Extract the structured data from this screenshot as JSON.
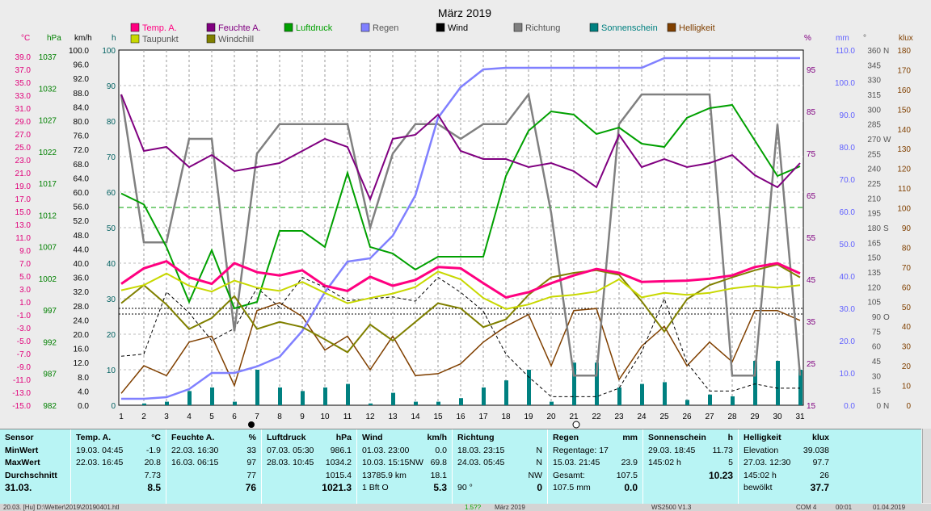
{
  "title": "März 2019",
  "colors": {
    "temp": "#ff0080",
    "feuchte": "#800080",
    "luftdruck": "#00a000",
    "regen": "#8080ff",
    "wind": "#000000",
    "richtung": "#808080",
    "sonnenschein": "#008080",
    "helligkeit": "#804000",
    "taupunkt": "#c8d800",
    "windchill": "#808000"
  },
  "legend": [
    {
      "name": "Temp. A.",
      "color": "#ff0080"
    },
    {
      "name": "Feuchte A.",
      "color": "#800080"
    },
    {
      "name": "Luftdruck",
      "color": "#00a000"
    },
    {
      "name": "Regen",
      "color": "#8080ff"
    },
    {
      "name": "Wind",
      "color": "#000000"
    },
    {
      "name": "Richtung",
      "color": "#808080"
    },
    {
      "name": "Sonnenschein",
      "color": "#008080"
    },
    {
      "name": "Helligkeit",
      "color": "#804000"
    },
    {
      "name": "Taupunkt",
      "color": "#c8d800"
    },
    {
      "name": "Windchill",
      "color": "#808000"
    }
  ],
  "axes": {
    "c": {
      "unit": "°C",
      "ticks": [
        "39.0",
        "37.0",
        "35.0",
        "33.0",
        "31.0",
        "29.0",
        "27.0",
        "25.0",
        "23.0",
        "21.0",
        "19.0",
        "17.0",
        "15.0",
        "13.0",
        "11.0",
        "9.0",
        "7.0",
        "5.0",
        "3.0",
        "1.0",
        "-1.0",
        "-3.0",
        "-5.0",
        "-7.0",
        "-9.0",
        "-11.0",
        "-13.0",
        "-15.0"
      ]
    },
    "hpa": {
      "unit": "hPa",
      "ticks": [
        "1037",
        "1032",
        "1027",
        "1022",
        "1017",
        "1012",
        "1007",
        "1002",
        "997",
        "992",
        "987",
        "982"
      ]
    },
    "kmh": {
      "unit": "km/h",
      "ticks": [
        "100.0",
        "96.0",
        "92.0",
        "88.0",
        "84.0",
        "80.0",
        "76.0",
        "72.0",
        "68.0",
        "64.0",
        "60.0",
        "56.0",
        "52.0",
        "48.0",
        "44.0",
        "40.0",
        "36.0",
        "32.0",
        "28.0",
        "24.0",
        "20.0",
        "16.0",
        "12.0",
        "8.0",
        "4.0",
        "0.0"
      ]
    },
    "h": {
      "unit": "h",
      "ticks": [
        "100",
        "90",
        "80",
        "70",
        "60",
        "50",
        "40",
        "30",
        "20",
        "10",
        "0"
      ]
    },
    "pct": {
      "unit": "%",
      "ticks": [
        "95",
        "85",
        "75",
        "65",
        "55",
        "45",
        "35",
        "25",
        "15"
      ]
    },
    "mm": {
      "unit": "mm",
      "ticks": [
        "110.0",
        "100.0",
        "90.0",
        "80.0",
        "70.0",
        "60.0",
        "50.0",
        "40.0",
        "30.0",
        "20.0",
        "10.0",
        "0.0"
      ]
    },
    "deg": {
      "unit": "°",
      "ticks": [
        "360",
        "345",
        "330",
        "315",
        "300",
        "285",
        "270",
        "255",
        "240",
        "225",
        "210",
        "195",
        "180",
        "165",
        "150",
        "135",
        "120",
        "105",
        "90",
        "75",
        "60",
        "45",
        "30",
        "15",
        "0"
      ]
    },
    "dir": [
      "N",
      "W",
      "S",
      "O",
      "N"
    ],
    "klux": {
      "unit": "klux",
      "ticks": [
        "180",
        "170",
        "160",
        "150",
        "140",
        "130",
        "120",
        "110",
        "100",
        "90",
        "80",
        "70",
        "60",
        "50",
        "40",
        "30",
        "20",
        "10",
        "0"
      ]
    },
    "days": [
      "1",
      "2",
      "3",
      "4",
      "5",
      "6",
      "7",
      "8",
      "9",
      "10",
      "11",
      "12",
      "13",
      "14",
      "15",
      "16",
      "17",
      "18",
      "19",
      "20",
      "21",
      "22",
      "23",
      "24",
      "25",
      "26",
      "27",
      "28",
      "29",
      "30",
      "31"
    ]
  },
  "chart_data": {
    "type": "line",
    "title": "März 2019",
    "x": [
      1,
      2,
      3,
      4,
      5,
      6,
      7,
      8,
      9,
      10,
      11,
      12,
      13,
      14,
      15,
      16,
      17,
      18,
      19,
      20,
      21,
      22,
      23,
      24,
      25,
      26,
      27,
      28,
      29,
      30,
      31
    ],
    "series": [
      {
        "name": "Temp. A.",
        "unit": "°C",
        "values": [
          3.8,
          6.2,
          7.3,
          4.8,
          3.8,
          7.0,
          5.6,
          5.1,
          5.9,
          3.5,
          2.7,
          4.9,
          3.5,
          4.4,
          6.4,
          6.2,
          3.9,
          1.7,
          2.5,
          3.9,
          5.1,
          6.1,
          5.5,
          4.1,
          4.2,
          4.3,
          4.6,
          5.1,
          6.4,
          7.0,
          5.4
        ]
      },
      {
        "name": "Feuchte A.",
        "unit": "%",
        "values": [
          92,
          78,
          79,
          74,
          77,
          73,
          74,
          75,
          78,
          81,
          79,
          66,
          81,
          82,
          87,
          78,
          76,
          76,
          74,
          75,
          73,
          69,
          82,
          74,
          76,
          74,
          75,
          77,
          72,
          69,
          75
        ]
      },
      {
        "name": "Luftdruck",
        "unit": "hPa",
        "values": [
          1014.8,
          1013.1,
          1006.5,
          998.0,
          1006.0,
          997.0,
          998.0,
          1009.0,
          1009.0,
          1006.5,
          1018.0,
          1006.5,
          1005.5,
          1003.0,
          1005.0,
          1005.0,
          1005.0,
          1017.5,
          1024.5,
          1027.5,
          1027.0,
          1024.0,
          1025.0,
          1022.5,
          1022.0,
          1026.5,
          1028.0,
          1028.5,
          1023.0,
          1017.5,
          1019.0
        ]
      },
      {
        "name": "Regen",
        "unit": "mm",
        "values": [
          2.0,
          2.0,
          2.5,
          5.0,
          10.0,
          10.0,
          12.0,
          15.0,
          23.0,
          35.0,
          44.5,
          45.5,
          52.5,
          65.0,
          89.0,
          98.5,
          104.0,
          104.5,
          104.5,
          104.5,
          104.5,
          104.5,
          104.5,
          104.5,
          107.5,
          107.5,
          107.5,
          107.5,
          107.5,
          107.5,
          107.5
        ]
      },
      {
        "name": "Wind",
        "unit": "km/h",
        "values": [
          13.8,
          14.4,
          31.9,
          26.0,
          18.2,
          21.6,
          33.0,
          27.6,
          36.0,
          33.2,
          29.4,
          30.0,
          30.5,
          29.3,
          36.0,
          31.8,
          26.5,
          14.4,
          8.0,
          2.4,
          2.4,
          2.4,
          4.8,
          15.0,
          30.0,
          12.0,
          4.0,
          4.0,
          6.0,
          4.8,
          4.8
        ]
      },
      {
        "name": "Richtung",
        "unit": "°",
        "values": [
          315,
          165,
          165,
          270,
          270,
          75,
          255,
          285,
          285,
          285,
          285,
          180,
          255,
          285,
          285,
          270,
          285,
          285,
          315,
          195,
          30,
          30,
          285,
          315,
          315,
          315,
          315,
          30,
          30,
          285,
          30
        ]
      },
      {
        "name": "Sonnenschein",
        "unit": "h",
        "values": [
          0,
          0.5,
          1,
          4,
          5,
          1,
          10,
          5,
          4,
          5,
          6,
          0.5,
          3.5,
          1,
          1,
          2,
          5,
          7,
          10,
          1,
          12,
          12,
          5,
          6,
          6.5,
          1.5,
          3,
          2.5,
          12.5,
          12.5,
          10
        ]
      },
      {
        "name": "Helligkeit",
        "unit": "klux",
        "values": [
          6,
          20,
          15,
          32,
          35,
          10,
          48,
          52,
          45,
          28,
          35,
          18,
          35,
          15,
          16,
          21,
          32,
          40,
          46,
          20,
          48,
          49,
          13,
          30,
          40,
          20,
          32,
          22,
          48,
          48,
          43
        ]
      },
      {
        "name": "Taupunkt",
        "unit": "°C",
        "values": [
          2.8,
          3.6,
          5.4,
          3.5,
          2.6,
          4.3,
          3.2,
          2.7,
          4.1,
          2.4,
          0.8,
          1.6,
          2.3,
          3.3,
          5.7,
          4.5,
          1.6,
          -0.1,
          0.6,
          1.8,
          2.1,
          2.6,
          4.5,
          1.7,
          2.4,
          2.1,
          2.4,
          3.1,
          3.5,
          3.2,
          3.6
        ]
      },
      {
        "name": "Windchill",
        "unit": "°C",
        "values": [
          0.8,
          3.6,
          0.6,
          -3.2,
          -1.5,
          1.9,
          -3.2,
          -2.1,
          -2.9,
          -4.8,
          -6.8,
          -2.5,
          -5.0,
          -2.1,
          0.8,
          0.0,
          -2.9,
          -1.7,
          2.1,
          4.8,
          5.5,
          5.9,
          5.2,
          1.1,
          -3.6,
          1.4,
          3.6,
          4.8,
          5.9,
          6.8,
          4.8
        ]
      }
    ]
  },
  "panel": {
    "sensor": {
      "head": "Sensor",
      "min": "MinWert",
      "max": "MaxWert",
      "avg": "Durchschnitt",
      "date": "31.03."
    },
    "temp": {
      "head": "Temp. A.",
      "unit": "°C",
      "min_t": "19.03. 04:45",
      "min_v": "-1.9",
      "max_t": "22.03. 16:45",
      "max_v": "20.8",
      "avg": "7.73",
      "cur": "8.5"
    },
    "feuchte": {
      "head": "Feuchte A.",
      "unit": "%",
      "min_t": "22.03. 16:30",
      "min_v": "33",
      "max_t": "16.03. 06:15",
      "max_v": "97",
      "avg": "77",
      "cur": "76"
    },
    "luftdruck": {
      "head": "Luftdruck",
      "unit": "hPa",
      "min_t": "07.03. 05:30",
      "min_v": "986.1",
      "max_t": "28.03. 10:45",
      "max_v": "1034.2",
      "avg": "1015.4",
      "cur": "1021.3"
    },
    "wind": {
      "head": "Wind",
      "unit": "km/h",
      "min_t": "01.03. 23:00",
      "min_v": "0.0",
      "max_t": "10.03. 15:15NW",
      "max_v": "69.8",
      "avg_t": "13785.9 km",
      "avg": "18.1",
      "bft": "1 Bft O",
      "cur": "5.3"
    },
    "richtung": {
      "head": "Richtung",
      "min_t": "18.03. 23:15",
      "min_v": "N",
      "max_t": "24.03. 05:45",
      "max_v": "N",
      "avg": "NW",
      "cur_t": "90 °",
      "cur": "0"
    },
    "regen": {
      "head": "Regen",
      "unit": "mm",
      "days": "Regentage: 17",
      "max_t": "15.03. 21:45",
      "max_v": "23.9",
      "total_l": "Gesamt:",
      "total": "107.5",
      "sum": "107.5 mm",
      "cur": "0.0"
    },
    "sonne": {
      "head": "Sonnenschein",
      "unit": "h",
      "max_t": "29.03. 18:45",
      "max_v": "11.73",
      "sum_l": "145:02 h",
      "sum_v": "5",
      "cur": "10.23"
    },
    "hell": {
      "head": "Helligkeit",
      "unit": "klux",
      "elev_l": "Elevation",
      "elev": "39.038",
      "max_t": "27.03. 12:30",
      "max_v": "97.7",
      "sum_l": "145:02 h",
      "sum_v": "26",
      "cond": "bewölkt",
      "cur": "37.7"
    }
  },
  "status": {
    "file": "20.03. [Hu] D:\\Wetter\\2019\\20190401.htl",
    "sel": "März 2019",
    "prog": "WS2500 V1.3",
    "com": "COM 4",
    "time": "00:01",
    "date": "01.04.2019",
    "fmt": "1.5??"
  }
}
